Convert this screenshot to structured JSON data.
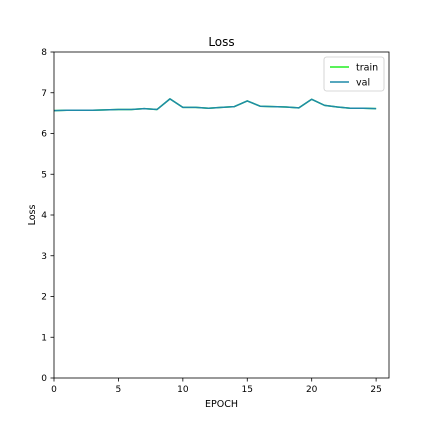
{
  "chart_data": {
    "type": "line",
    "title": "Loss",
    "xlabel": "EPOCH",
    "ylabel": "Loss",
    "xlim": [
      0,
      26
    ],
    "ylim": [
      0,
      8
    ],
    "xticks": [
      0,
      5,
      10,
      15,
      20,
      25
    ],
    "yticks": [
      0,
      1,
      2,
      3,
      4,
      5,
      6,
      7,
      8
    ],
    "grid": false,
    "legend_position": "top-right",
    "x": [
      0,
      1,
      2,
      3,
      4,
      5,
      6,
      7,
      8,
      9,
      10,
      11,
      12,
      13,
      14,
      15,
      16,
      17,
      18,
      19,
      20,
      21,
      22,
      23,
      24,
      25
    ],
    "series": [
      {
        "name": "train",
        "color": "#22ee22",
        "values": [
          6.56,
          6.57,
          6.57,
          6.57,
          6.58,
          6.59,
          6.59,
          6.61,
          6.59,
          6.85,
          6.64,
          6.64,
          6.62,
          6.64,
          6.66,
          6.8,
          6.67,
          6.66,
          6.65,
          6.63,
          6.84,
          6.69,
          6.65,
          6.62,
          6.62,
          6.61
        ]
      },
      {
        "name": "val",
        "color": "#1f8aa8",
        "values": [
          6.56,
          6.57,
          6.57,
          6.57,
          6.58,
          6.59,
          6.59,
          6.61,
          6.59,
          6.85,
          6.64,
          6.64,
          6.62,
          6.64,
          6.66,
          6.8,
          6.67,
          6.66,
          6.65,
          6.63,
          6.84,
          6.69,
          6.65,
          6.62,
          6.62,
          6.61
        ]
      }
    ]
  }
}
